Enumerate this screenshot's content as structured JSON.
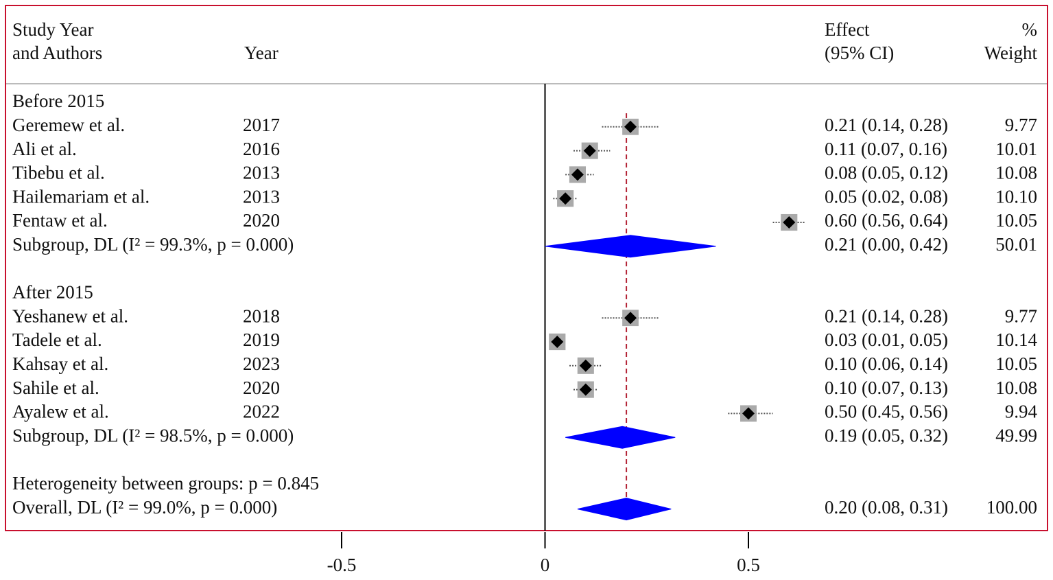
{
  "chart_data": {
    "type": "forest",
    "headers": {
      "study": "Study Year",
      "study2": "and Authors",
      "year": "Year",
      "effect": "Effect",
      "ci": "(95% CI)",
      "pct": "%",
      "weight": "Weight"
    },
    "xlim": [
      -0.5,
      0.5
    ],
    "xticks": [
      -0.5,
      0,
      0.5
    ],
    "diamond_color": "#0000ff",
    "groups": [
      {
        "name": "Before 2015",
        "studies": [
          {
            "name": "Geremew et al.",
            "year": 2017,
            "effect": 0.21,
            "lower": 0.14,
            "upper": 0.28,
            "ci_label": "0.21 (0.14, 0.28)",
            "weight": 9.77,
            "weight_label": "9.77"
          },
          {
            "name": "Ali et al.",
            "year": 2016,
            "effect": 0.11,
            "lower": 0.07,
            "upper": 0.16,
            "ci_label": "0.11 (0.07, 0.16)",
            "weight": 10.01,
            "weight_label": "10.01"
          },
          {
            "name": "Tibebu et al.",
            "year": 2013,
            "effect": 0.08,
            "lower": 0.05,
            "upper": 0.12,
            "ci_label": "0.08 (0.05, 0.12)",
            "weight": 10.08,
            "weight_label": "10.08"
          },
          {
            "name": "Hailemariam et al.",
            "year": 2013,
            "effect": 0.05,
            "lower": 0.02,
            "upper": 0.08,
            "ci_label": "0.05 (0.02, 0.08)",
            "weight": 10.1,
            "weight_label": "10.10"
          },
          {
            "name": "Fentaw et al.",
            "year": 2020,
            "effect": 0.6,
            "lower": 0.56,
            "upper": 0.64,
            "ci_label": "0.60 (0.56, 0.64)",
            "weight": 10.05,
            "weight_label": "10.05"
          }
        ],
        "subtotal": {
          "label": "Subgroup, DL (I² = 99.3%, p = 0.000)",
          "effect": 0.21,
          "lower": 0.0,
          "upper": 0.42,
          "ci_label": "0.21 (0.00, 0.42)",
          "weight": 50.01,
          "weight_label": "50.01"
        }
      },
      {
        "name": "After 2015",
        "studies": [
          {
            "name": "Yeshanew et al.",
            "year": 2018,
            "effect": 0.21,
            "lower": 0.14,
            "upper": 0.28,
            "ci_label": "0.21 (0.14, 0.28)",
            "weight": 9.77,
            "weight_label": "9.77"
          },
          {
            "name": "Tadele et al.",
            "year": 2019,
            "effect": 0.03,
            "lower": 0.01,
            "upper": 0.05,
            "ci_label": "0.03 (0.01, 0.05)",
            "weight": 10.14,
            "weight_label": "10.14"
          },
          {
            "name": "Kahsay et al.",
            "year": 2023,
            "effect": 0.1,
            "lower": 0.06,
            "upper": 0.14,
            "ci_label": "0.10 (0.06, 0.14)",
            "weight": 10.05,
            "weight_label": "10.05"
          },
          {
            "name": "Sahile et al.",
            "year": 2020,
            "effect": 0.1,
            "lower": 0.07,
            "upper": 0.13,
            "ci_label": "0.10 (0.07, 0.13)",
            "weight": 10.08,
            "weight_label": "10.08"
          },
          {
            "name": "Ayalew et al.",
            "year": 2022,
            "effect": 0.5,
            "lower": 0.45,
            "upper": 0.56,
            "ci_label": "0.50 (0.45, 0.56)",
            "weight": 9.94,
            "weight_label": "9.94"
          }
        ],
        "subtotal": {
          "label": "Subgroup, DL (I² = 98.5%, p = 0.000)",
          "effect": 0.19,
          "lower": 0.05,
          "upper": 0.32,
          "ci_label": "0.19 (0.05, 0.32)",
          "weight": 49.99,
          "weight_label": "49.99"
        }
      }
    ],
    "heterogeneity": "Heterogeneity between groups: p = 0.845",
    "overall": {
      "label": "Overall, DL (I² = 99.0%, p = 0.000)",
      "effect": 0.2,
      "lower": 0.08,
      "upper": 0.31,
      "ci_label": "0.20 (0.08, 0.31)",
      "weight": 100,
      "weight_label": "100.00"
    }
  }
}
